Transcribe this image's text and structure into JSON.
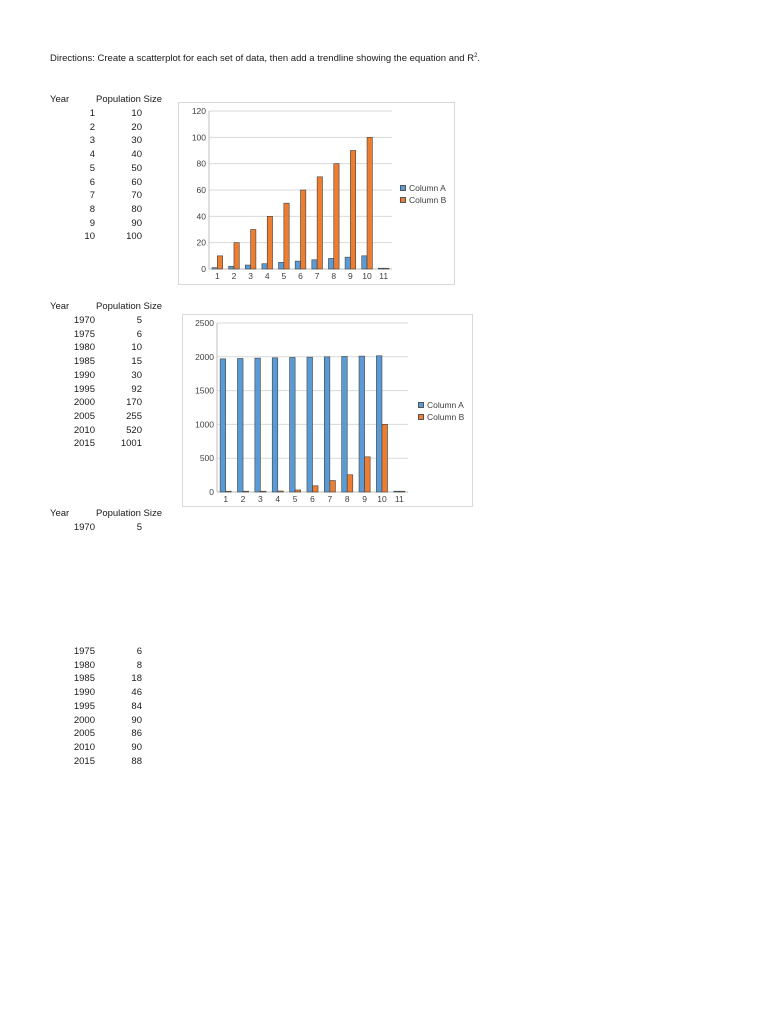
{
  "directions": {
    "text": "Directions:  Create a scatterplot for each set of data, then add a trendline showing the equation and R",
    "superscript": "2",
    "end": "."
  },
  "tables": [
    {
      "year_header": "Year",
      "pop_header": "Population Size",
      "rows": [
        {
          "year": "1",
          "pop": "10"
        },
        {
          "year": "2",
          "pop": "20"
        },
        {
          "year": "3",
          "pop": "30"
        },
        {
          "year": "4",
          "pop": "40"
        },
        {
          "year": "5",
          "pop": "50"
        },
        {
          "year": "6",
          "pop": "60"
        },
        {
          "year": "7",
          "pop": "70"
        },
        {
          "year": "8",
          "pop": "80"
        },
        {
          "year": "9",
          "pop": "90"
        },
        {
          "year": "10",
          "pop": "100"
        }
      ]
    },
    {
      "year_header": "Year",
      "pop_header": "Population Size",
      "rows": [
        {
          "year": "1970",
          "pop": "5"
        },
        {
          "year": "1975",
          "pop": "6"
        },
        {
          "year": "1980",
          "pop": "10"
        },
        {
          "year": "1985",
          "pop": "15"
        },
        {
          "year": "1990",
          "pop": "30"
        },
        {
          "year": "1995",
          "pop": "92"
        },
        {
          "year": "2000",
          "pop": "170"
        },
        {
          "year": "2005",
          "pop": "255"
        },
        {
          "year": "2010",
          "pop": "520"
        },
        {
          "year": "2015",
          "pop": "1001"
        }
      ]
    },
    {
      "year_header": "Year",
      "pop_header": "Population Size",
      "rows": [
        {
          "year": "1970",
          "pop": "5"
        },
        {
          "year": "1975",
          "pop": "6"
        },
        {
          "year": "1980",
          "pop": "8"
        },
        {
          "year": "1985",
          "pop": "18"
        },
        {
          "year": "1990",
          "pop": "46"
        },
        {
          "year": "1995",
          "pop": "84"
        },
        {
          "year": "2000",
          "pop": "90"
        },
        {
          "year": "2005",
          "pop": "86"
        },
        {
          "year": "2010",
          "pop": "90"
        },
        {
          "year": "2015",
          "pop": "88"
        }
      ]
    }
  ],
  "chart_data": [
    {
      "type": "bar",
      "categories": [
        "1",
        "2",
        "3",
        "4",
        "5",
        "6",
        "7",
        "8",
        "9",
        "10",
        "11"
      ],
      "series": [
        {
          "name": "Column A",
          "color": "#5b9bd5",
          "values": [
            1,
            2,
            3,
            4,
            5,
            6,
            7,
            8,
            9,
            10,
            0
          ]
        },
        {
          "name": "Column B",
          "color": "#ed7d31",
          "values": [
            10,
            20,
            30,
            40,
            50,
            60,
            70,
            80,
            90,
            100,
            0
          ]
        }
      ],
      "ylim": [
        0,
        120
      ],
      "yticks": [
        "0",
        "20",
        "40",
        "60",
        "80",
        "100",
        "120"
      ],
      "grid": true,
      "legend": "right"
    },
    {
      "type": "bar",
      "categories": [
        "1",
        "2",
        "3",
        "4",
        "5",
        "6",
        "7",
        "8",
        "9",
        "10",
        "11"
      ],
      "series": [
        {
          "name": "Column A",
          "color": "#5b9bd5",
          "values": [
            1970,
            1975,
            1980,
            1985,
            1990,
            1995,
            2000,
            2005,
            2010,
            2015,
            0
          ]
        },
        {
          "name": "Column B",
          "color": "#ed7d31",
          "values": [
            5,
            6,
            10,
            15,
            30,
            92,
            170,
            255,
            520,
            1001,
            0
          ]
        }
      ],
      "ylim": [
        0,
        2500
      ],
      "yticks": [
        "0",
        "500",
        "1000",
        "1500",
        "2000",
        "2500"
      ],
      "grid": true,
      "legend": "right"
    }
  ]
}
